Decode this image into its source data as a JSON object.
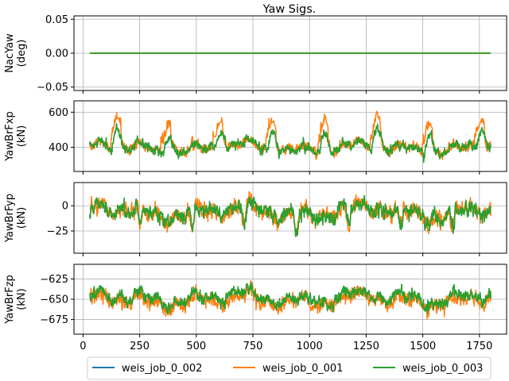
{
  "chart_data": {
    "type": "line",
    "title": "Yaw Sigs.",
    "legend": {
      "placement": "bottom-center",
      "entries": [
        "weis_job_0_002",
        "weis_job_0_001",
        "weis_job_0_003"
      ]
    },
    "series_colors": {
      "weis_job_0_002": "#1f77b4",
      "weis_job_0_001": "#ff7f0e",
      "weis_job_0_003": "#2ca02c"
    },
    "shared_x": {
      "range": [
        30,
        1800
      ],
      "xlim": [
        -40,
        1870
      ],
      "ticks": [
        0,
        250,
        500,
        750,
        1000,
        1250,
        1500,
        1750
      ],
      "tick_labels": [
        "0",
        "250",
        "500",
        "750",
        "1000",
        "1250",
        "1500",
        "1750"
      ]
    },
    "grid": true,
    "panels": [
      {
        "name": "nacyaw",
        "ylabel": [
          "NacYaw",
          "(deg)"
        ],
        "ylim": [
          -0.055,
          0.055
        ],
        "yticks": [
          -0.05,
          0,
          0.05
        ],
        "ytick_labels": [
          "−0.05",
          "0.00",
          "0.05"
        ],
        "series": [
          {
            "name": "weis_job_0_002",
            "constant": 0
          },
          {
            "name": "weis_job_0_001",
            "constant": 0
          },
          {
            "name": "weis_job_0_003",
            "constant": 0
          }
        ]
      },
      {
        "name": "yawbrfxp",
        "ylabel": [
          "YawBrFxp",
          "(kN)"
        ],
        "ylim": [
          262,
          665
        ],
        "yticks": [
          400,
          600
        ],
        "ytick_labels": [
          "400",
          "600"
        ],
        "approx_range": [
          300,
          640
        ],
        "typical_mean": 400,
        "orange_peak_times": [
          145,
          365,
          595,
          830,
          1060,
          1290,
          1520,
          1750
        ]
      },
      {
        "name": "yawbrfyp",
        "ylabel": [
          "YawBrFyp",
          "(kN)"
        ],
        "ylim": [
          -47,
          23
        ],
        "yticks": [
          -25,
          0
        ],
        "ytick_labels": [
          "−25",
          "0"
        ],
        "approx_range": [
          -45,
          20
        ],
        "typical_mean": -5
      },
      {
        "name": "yawbrfzp",
        "ylabel": [
          "YawBrFzp",
          "(kN)"
        ],
        "ylim": [
          -693,
          -607
        ],
        "yticks": [
          -675,
          -650,
          -625
        ],
        "ytick_labels": [
          "−675",
          "−650",
          "−625"
        ],
        "approx_range": [
          -690,
          -615
        ],
        "typical_mean": -648
      }
    ]
  }
}
